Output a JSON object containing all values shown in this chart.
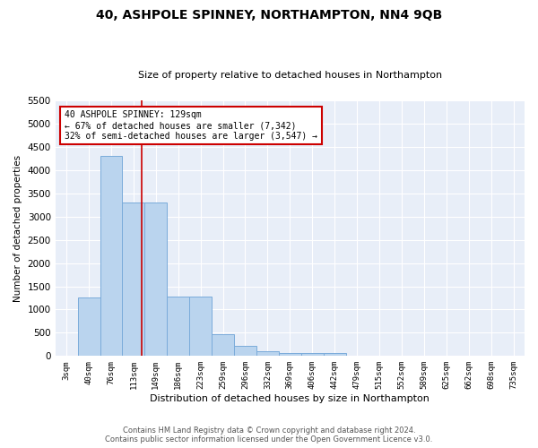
{
  "title": "40, ASHPOLE SPINNEY, NORTHAMPTON, NN4 9QB",
  "subtitle": "Size of property relative to detached houses in Northampton",
  "xlabel": "Distribution of detached houses by size in Northampton",
  "ylabel": "Number of detached properties",
  "bar_color": "#bad4ee",
  "bar_edge_color": "#7aabda",
  "background_color": "#e8eef8",
  "grid_color": "#ffffff",
  "fig_bg_color": "#ffffff",
  "categories": [
    "3sqm",
    "40sqm",
    "76sqm",
    "113sqm",
    "149sqm",
    "186sqm",
    "223sqm",
    "259sqm",
    "296sqm",
    "332sqm",
    "369sqm",
    "406sqm",
    "442sqm",
    "479sqm",
    "515sqm",
    "552sqm",
    "589sqm",
    "625sqm",
    "662sqm",
    "698sqm",
    "735sqm"
  ],
  "values": [
    0,
    1250,
    4300,
    3300,
    3300,
    1270,
    1270,
    470,
    220,
    100,
    70,
    55,
    55,
    0,
    0,
    0,
    0,
    0,
    0,
    0,
    0
  ],
  "ylim": [
    0,
    5500
  ],
  "yticks": [
    0,
    500,
    1000,
    1500,
    2000,
    2500,
    3000,
    3500,
    4000,
    4500,
    5000,
    5500
  ],
  "red_line_x": 3.35,
  "annotation_line1": "40 ASHPOLE SPINNEY: 129sqm",
  "annotation_line2": "← 67% of detached houses are smaller (7,342)",
  "annotation_line3": "32% of semi-detached houses are larger (3,547) →",
  "annotation_box_color": "#ffffff",
  "annotation_border_color": "#cc0000",
  "footer_text": "Contains HM Land Registry data © Crown copyright and database right 2024.\nContains public sector information licensed under the Open Government Licence v3.0.",
  "figsize": [
    6.0,
    5.0
  ],
  "dpi": 100
}
